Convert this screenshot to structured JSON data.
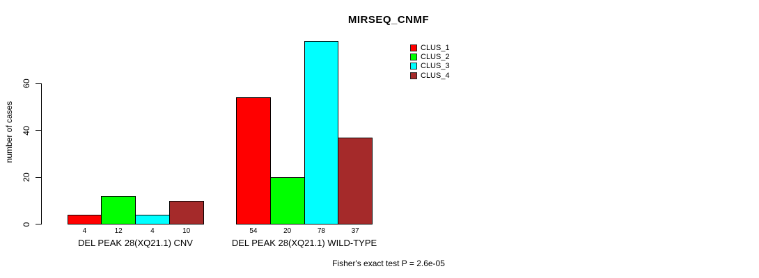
{
  "chart_data": {
    "type": "bar",
    "title": "MIRSEQ_CNMF",
    "xlabel": "",
    "ylabel": "number of cases",
    "categories": [
      "DEL PEAK 28(XQ21.1) CNV",
      "DEL PEAK 28(XQ21.1) WILD-TYPE"
    ],
    "series": [
      {
        "name": "CLUS_1",
        "color": "#ff0000",
        "values": [
          4,
          54
        ]
      },
      {
        "name": "CLUS_2",
        "color": "#00ff00",
        "values": [
          12,
          20
        ]
      },
      {
        "name": "CLUS_3",
        "color": "#00ffff",
        "values": [
          4,
          78
        ]
      },
      {
        "name": "CLUS_4",
        "color": "#a52a2a",
        "values": [
          10,
          37
        ]
      }
    ],
    "yticks": [
      0,
      20,
      40,
      60
    ],
    "ylim": [
      0,
      78
    ],
    "grid": false,
    "bar_labels": true,
    "legend_position": "top-right",
    "annotation": "Fisher's exact test P = 2.6e-05"
  }
}
